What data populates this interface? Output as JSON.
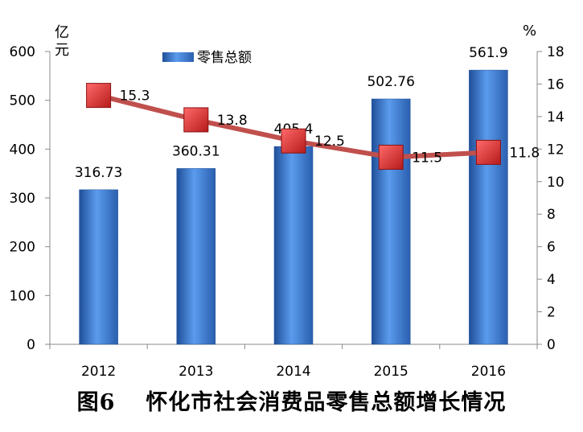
{
  "caption": {
    "figure_number": "图6",
    "title": "怀化市社会消费品零售总额增长情况"
  },
  "colors": {
    "bar": "#3f7fd0",
    "bar_dark": "#1f4f99",
    "line": "#c0504d",
    "marker": "#e03030"
  },
  "chart_data": {
    "type": "bar+line",
    "categories": [
      "2012",
      "2013",
      "2014",
      "2015",
      "2016"
    ],
    "series": [
      {
        "name": "零售总额",
        "type": "bar",
        "axis": "left",
        "values": [
          316.73,
          360.31,
          405.4,
          502.76,
          561.9
        ],
        "labels": [
          "316.73",
          "360.31",
          "405.4",
          "502.76",
          "561.9"
        ]
      },
      {
        "type": "line",
        "axis": "right",
        "values": [
          15.3,
          13.8,
          12.5,
          11.5,
          11.8
        ],
        "labels": [
          "15.3",
          "13.8",
          "12.5",
          "11.5",
          "11.8"
        ]
      }
    ],
    "y_left": {
      "unit": [
        "亿",
        "元"
      ],
      "ylim": [
        0,
        600
      ],
      "ticks": [
        "0",
        "100",
        "200",
        "300",
        "400",
        "500",
        "600"
      ]
    },
    "y_right": {
      "unit": "%",
      "ylim": [
        0,
        18
      ],
      "ticks": [
        "0",
        "2",
        "4",
        "6",
        "8",
        "10",
        "12",
        "14",
        "16",
        "18"
      ]
    },
    "legend": "top-left",
    "grid": false
  }
}
